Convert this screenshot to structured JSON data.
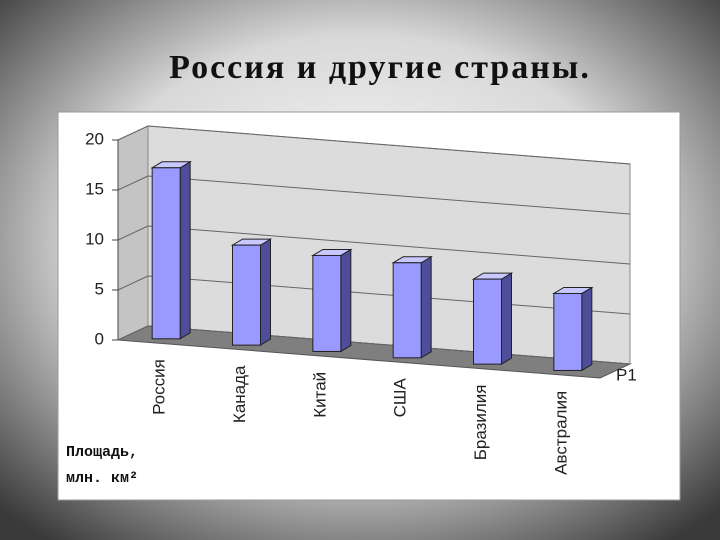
{
  "chart_data": {
    "type": "bar3d",
    "title": "Россия и другие страны.",
    "y_label_lines": [
      "Площадь,",
      "млн. км²"
    ],
    "categories": [
      "Россия",
      "Канада",
      "Китай",
      "США",
      "Бразилия",
      "Австралия"
    ],
    "series": [
      {
        "name": "Р1",
        "color": "#9999ff",
        "values": [
          17.1,
          10,
          9.6,
          9.5,
          8.5,
          7.7
        ]
      }
    ],
    "ylim": [
      0,
      20
    ],
    "yticks": [
      0,
      5,
      10,
      15,
      20
    ],
    "grid": true
  }
}
